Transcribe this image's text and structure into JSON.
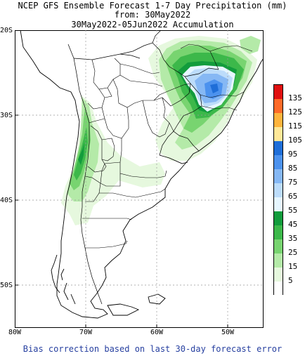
{
  "title": {
    "line1": "NCEP GFS Ensemble Forecast 1-7 Day Precipitation (mm)",
    "line2": "from: 30May2022",
    "line3": "30May2022-05Jun2022 Accumulation"
  },
  "axes": {
    "lat_labels": [
      "20S",
      "30S",
      "40S",
      "50S"
    ],
    "lon_labels": [
      "80W",
      "70W",
      "60W",
      "50W"
    ]
  },
  "legend": {
    "levels": [
      {
        "label": "135",
        "color": "#e01010"
      },
      {
        "label": "125",
        "color": "#ff6a28"
      },
      {
        "label": "115",
        "color": "#ffb43c"
      },
      {
        "label": "105",
        "color": "#ffe898"
      },
      {
        "label": "95",
        "color": "#1f6ed8"
      },
      {
        "label": "85",
        "color": "#4c92ee"
      },
      {
        "label": "75",
        "color": "#86b8f4"
      },
      {
        "label": "65",
        "color": "#bcdcfa"
      },
      {
        "label": "55",
        "color": "#e6f6ff"
      },
      {
        "label": "45",
        "color": "#129c3c"
      },
      {
        "label": "35",
        "color": "#3cb84a"
      },
      {
        "label": "25",
        "color": "#78d470"
      },
      {
        "label": "15",
        "color": "#b4eaa8"
      },
      {
        "label": "5",
        "color": "#e6f8de"
      }
    ],
    "bottom_color": "#ffffff"
  },
  "footer": "Bias correction based on last 30-day forecast error"
}
